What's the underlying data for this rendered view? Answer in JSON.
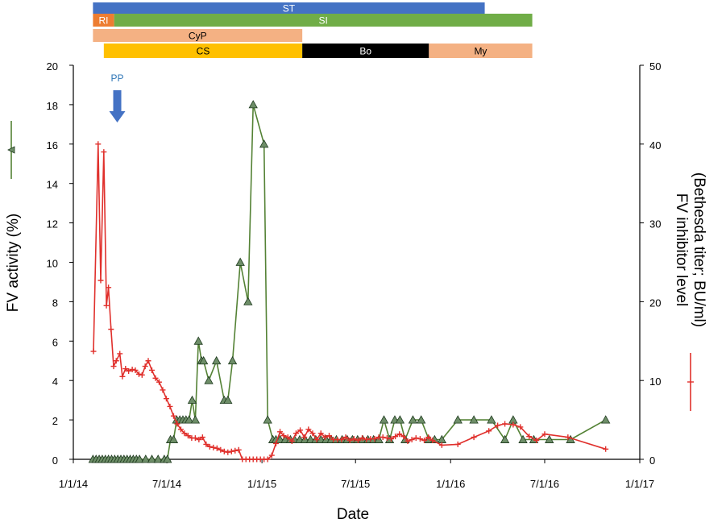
{
  "chart_data": {
    "type": "line",
    "xlabel": "Date",
    "ylabel_left": "FV activity (%)",
    "ylabel_right": [
      "FV inhibitor level",
      "(Bethesda titer; BU/ml)"
    ],
    "x_ticks": [
      "1/1/14",
      "7/1/14",
      "1/1/15",
      "7/1/15",
      "1/1/16",
      "7/1/16",
      "1/1/17"
    ],
    "x_tick_dates": [
      "2014-01-01",
      "2014-07-01",
      "2015-01-01",
      "2015-07-01",
      "2016-01-01",
      "2016-07-01",
      "2017-01-01"
    ],
    "y_left_ticks": [
      "0",
      "2",
      "4",
      "6",
      "8",
      "10",
      "12",
      "14",
      "16",
      "18",
      "20"
    ],
    "y_right_ticks": [
      "0",
      "10",
      "20",
      "30",
      "40",
      "50"
    ],
    "xlim": [
      "2014-01-01",
      "2017-01-01"
    ],
    "ylim_left": [
      0,
      20
    ],
    "ylim_right": [
      0,
      50
    ],
    "grid": false,
    "annotations": [
      {
        "text": "PP",
        "date": "2014-03-27",
        "color": "#2e75b6"
      }
    ],
    "treatment_bars": [
      {
        "label": "ST",
        "start": "2014-02-08",
        "end": "2016-03-07",
        "color": "#4472c4",
        "text_color": "#ffffff",
        "row": 0
      },
      {
        "label": "RI",
        "start": "2014-02-08",
        "end": "2014-03-21",
        "color": "#ed7d31",
        "text_color": "#ffffff",
        "row": 1
      },
      {
        "label": "SI",
        "start": "2014-03-21",
        "end": "2016-06-07",
        "color": "#70ad47",
        "text_color": "#ffffff",
        "row": 1
      },
      {
        "label": "CyP",
        "start": "2014-02-08",
        "end": "2015-03-20",
        "color": "#f4b183",
        "text_color": "#000000",
        "row": 2
      },
      {
        "label": "CS",
        "start": "2014-03-01",
        "end": "2015-03-20",
        "color": "#ffc000",
        "text_color": "#000000",
        "row": 3
      },
      {
        "label": "Bo",
        "start": "2015-03-20",
        "end": "2015-11-20",
        "color": "#000000",
        "text_color": "#ffffff",
        "row": 3
      },
      {
        "label": "My",
        "start": "2015-11-20",
        "end": "2016-06-07",
        "color": "#f4b183",
        "text_color": "#000000",
        "row": 3
      }
    ],
    "series": [
      {
        "axis": "left",
        "color": "#548235",
        "marker": "triangle",
        "marker_fill": "#6e8e68",
        "x": [
          "2014-02-08",
          "2014-02-14",
          "2014-02-20",
          "2014-02-26",
          "2014-03-04",
          "2014-03-10",
          "2014-03-16",
          "2014-03-22",
          "2014-03-28",
          "2014-04-03",
          "2014-04-09",
          "2014-04-15",
          "2014-04-21",
          "2014-04-27",
          "2014-05-03",
          "2014-05-09",
          "2014-05-21",
          "2014-06-02",
          "2014-06-14",
          "2014-06-26",
          "2014-07-02",
          "2014-07-08",
          "2014-07-14",
          "2014-07-20",
          "2014-07-26",
          "2014-08-01",
          "2014-08-07",
          "2014-08-13",
          "2014-08-19",
          "2014-08-25",
          "2014-08-31",
          "2014-09-06",
          "2014-09-10",
          "2014-09-20",
          "2014-10-05",
          "2014-10-20",
          "2014-10-27",
          "2014-11-05",
          "2014-11-20",
          "2014-12-05",
          "2014-12-15",
          "2015-01-05",
          "2015-01-12",
          "2015-01-22",
          "2015-01-28",
          "2015-02-05",
          "2015-02-15",
          "2015-02-25",
          "2015-03-05",
          "2015-03-15",
          "2015-03-25",
          "2015-04-05",
          "2015-04-15",
          "2015-04-25",
          "2015-05-05",
          "2015-05-15",
          "2015-05-25",
          "2015-06-05",
          "2015-06-15",
          "2015-06-25",
          "2015-07-05",
          "2015-07-15",
          "2015-07-25",
          "2015-08-05",
          "2015-08-15",
          "2015-08-25",
          "2015-09-05",
          "2015-09-15",
          "2015-09-25",
          "2015-10-05",
          "2015-10-20",
          "2015-11-05",
          "2015-11-20",
          "2015-12-01",
          "2015-12-15",
          "2016-01-15",
          "2016-02-15",
          "2016-03-20",
          "2016-04-15",
          "2016-05-01",
          "2016-05-20",
          "2016-06-10",
          "2016-07-10",
          "2016-08-20",
          "2016-10-27"
        ],
        "values": [
          0,
          0,
          0,
          0,
          0,
          0,
          0,
          0,
          0,
          0,
          0,
          0,
          0,
          0,
          0,
          0,
          0,
          0,
          0,
          0,
          0,
          1,
          1,
          2,
          2,
          2,
          2,
          2,
          3,
          2,
          6,
          5,
          5,
          4,
          5,
          3,
          3,
          5,
          10,
          8,
          18,
          16,
          2,
          1,
          1,
          1,
          1,
          1,
          1,
          1,
          1,
          1,
          1,
          1,
          1,
          1,
          1,
          1,
          1,
          1,
          1,
          1,
          1,
          1,
          1,
          2,
          1,
          2,
          2,
          1,
          2,
          2,
          1,
          1,
          1,
          2,
          2,
          2,
          1,
          2,
          1,
          1,
          1,
          1,
          2
        ]
      },
      {
        "axis": "right",
        "color": "#e0302c",
        "marker": "plus",
        "x": [
          "2014-02-09",
          "2014-02-18",
          "2014-02-23",
          "2014-03-01",
          "2014-03-06",
          "2014-03-10",
          "2014-03-15",
          "2014-03-20",
          "2014-03-25",
          "2014-04-01",
          "2014-04-06",
          "2014-04-12",
          "2014-04-18",
          "2014-04-25",
          "2014-05-01",
          "2014-05-08",
          "2014-05-14",
          "2014-05-20",
          "2014-05-26",
          "2014-06-02",
          "2014-06-09",
          "2014-06-16",
          "2014-06-23",
          "2014-06-30",
          "2014-07-07",
          "2014-07-14",
          "2014-07-21",
          "2014-07-28",
          "2014-08-04",
          "2014-08-11",
          "2014-08-18",
          "2014-08-25",
          "2014-09-01",
          "2014-09-08",
          "2014-09-15",
          "2014-09-22",
          "2014-09-29",
          "2014-10-06",
          "2014-10-13",
          "2014-10-20",
          "2014-10-27",
          "2014-11-03",
          "2014-11-10",
          "2014-11-17",
          "2014-11-24",
          "2014-12-01",
          "2014-12-08",
          "2014-12-15",
          "2014-12-22",
          "2014-12-29",
          "2015-01-05",
          "2015-01-12",
          "2015-01-20",
          "2015-01-28",
          "2015-02-05",
          "2015-02-12",
          "2015-02-20",
          "2015-02-28",
          "2015-03-08",
          "2015-03-16",
          "2015-03-24",
          "2015-04-01",
          "2015-04-09",
          "2015-04-17",
          "2015-04-25",
          "2015-05-03",
          "2015-05-11",
          "2015-05-19",
          "2015-05-27",
          "2015-06-04",
          "2015-06-12",
          "2015-06-20",
          "2015-06-28",
          "2015-07-06",
          "2015-07-14",
          "2015-07-22",
          "2015-07-30",
          "2015-08-07",
          "2015-08-15",
          "2015-08-23",
          "2015-08-31",
          "2015-09-08",
          "2015-09-16",
          "2015-09-24",
          "2015-10-02",
          "2015-10-10",
          "2015-10-18",
          "2015-10-26",
          "2015-11-03",
          "2015-11-11",
          "2015-11-19",
          "2015-11-27",
          "2015-12-15",
          "2016-01-15",
          "2016-02-15",
          "2016-03-15",
          "2016-04-01",
          "2016-04-15",
          "2016-05-01",
          "2016-05-15",
          "2016-06-01",
          "2016-06-15",
          "2016-07-01",
          "2016-08-15",
          "2016-10-27"
        ],
        "values": [
          13.7,
          40.0,
          22.7,
          39.0,
          19.5,
          21.8,
          16.5,
          11.8,
          12.5,
          13.4,
          10.5,
          11.5,
          11.2,
          11.4,
          11.3,
          10.8,
          10.7,
          11.8,
          12.5,
          11.3,
          10.3,
          9.8,
          8.8,
          7.7,
          6.7,
          5.5,
          4.5,
          3.8,
          3.3,
          3.0,
          2.7,
          2.7,
          2.5,
          2.8,
          1.9,
          1.6,
          1.5,
          1.4,
          1.2,
          1.0,
          0.9,
          1.0,
          1.1,
          1.2,
          0.0,
          0.0,
          0.0,
          0.0,
          0.0,
          0.0,
          0.0,
          0.0,
          0.5,
          2.0,
          3.5,
          3.0,
          2.8,
          2.3,
          3.3,
          3.7,
          2.8,
          3.8,
          3.3,
          2.5,
          3.3,
          2.8,
          3.0,
          2.5,
          2.5,
          2.5,
          2.8,
          2.4,
          2.6,
          2.4,
          2.7,
          2.5,
          2.6,
          2.6,
          2.8,
          2.8,
          2.7,
          2.6,
          2.9,
          3.2,
          2.9,
          2.3,
          2.5,
          2.7,
          2.6,
          2.4,
          2.8,
          2.4,
          1.8,
          1.9,
          2.8,
          3.6,
          4.3,
          4.5,
          4.4,
          4.1,
          2.9,
          2.4,
          3.2,
          2.8,
          1.3
        ]
      }
    ]
  }
}
